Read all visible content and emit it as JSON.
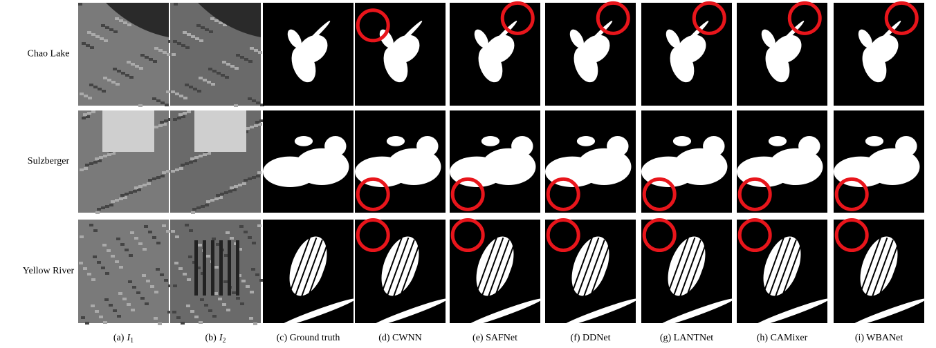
{
  "rows": [
    {
      "label": "Chao Lake"
    },
    {
      "label": "Sulzberger"
    },
    {
      "label": "Yellow River"
    }
  ],
  "columns": [
    {
      "label": "(a)",
      "symbol": "I",
      "subscript": "1"
    },
    {
      "label": "(b)",
      "symbol": "I",
      "subscript": "2"
    },
    {
      "label": "(c) Ground truth"
    },
    {
      "label": "(d) CWNN"
    },
    {
      "label": "(e) SAFNet"
    },
    {
      "label": "(f) DDNet"
    },
    {
      "label": "(g) LANTNet"
    },
    {
      "label": "(h) CAMixer"
    },
    {
      "label": "(i) WBANet"
    }
  ]
}
